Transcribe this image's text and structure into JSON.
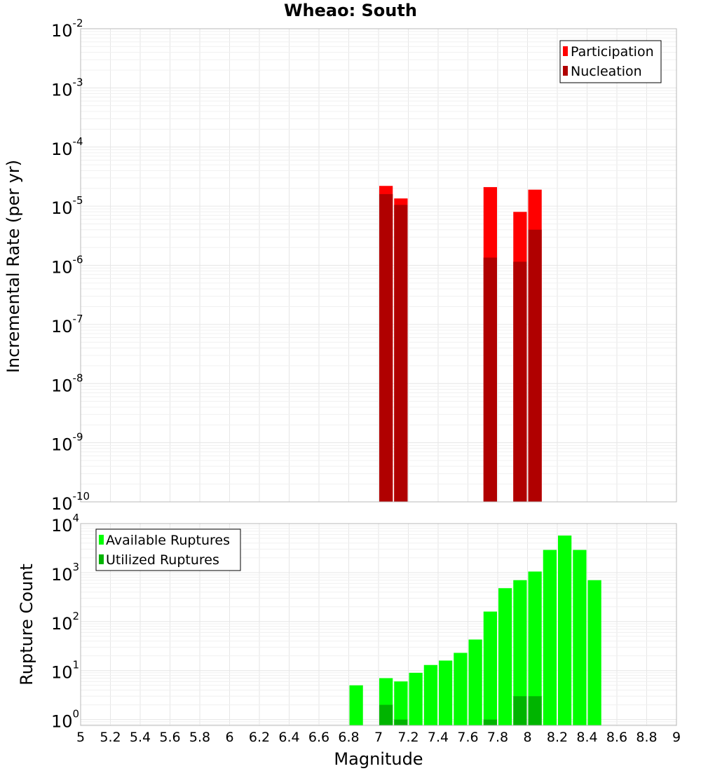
{
  "title": "Wheao: South",
  "xlabel": "Magnitude",
  "colors": {
    "participation": "#ff0000",
    "nucleation": "#b00000",
    "available": "#00ff00",
    "utilized": "#00b400"
  },
  "chart_data": [
    {
      "type": "bar",
      "name": "rates",
      "ylabel": "Incremental Rate (per yr)",
      "yscale": "log",
      "ylim_exp": [
        -10,
        -2
      ],
      "xlim": [
        5,
        9
      ],
      "y_ticks": [
        {
          "base": "10",
          "exp": "-10"
        },
        {
          "base": "10",
          "exp": "-9"
        },
        {
          "base": "10",
          "exp": "-8"
        },
        {
          "base": "10",
          "exp": "-7"
        },
        {
          "base": "10",
          "exp": "-6"
        },
        {
          "base": "10",
          "exp": "-5"
        },
        {
          "base": "10",
          "exp": "-4"
        },
        {
          "base": "10",
          "exp": "-3"
        },
        {
          "base": "10",
          "exp": "-2"
        }
      ],
      "legend": {
        "position": "top-right",
        "entries": [
          "Participation",
          "Nucleation"
        ]
      },
      "series": [
        {
          "name": "Participation",
          "x": [
            7.05,
            7.15,
            7.75,
            7.95,
            8.05
          ],
          "values": [
            2.2e-05,
            1.35e-05,
            2.1e-05,
            8e-06,
            1.9e-05
          ]
        },
        {
          "name": "Nucleation",
          "x": [
            7.05,
            7.15,
            7.75,
            7.95,
            8.05
          ],
          "values": [
            1.6e-05,
            1.05e-05,
            1.35e-06,
            1.15e-06,
            4e-06
          ]
        }
      ]
    },
    {
      "type": "bar",
      "name": "counts",
      "ylabel": "Rupture Count",
      "yscale": "log",
      "ylim_exp": [
        -0.12,
        4
      ],
      "xlim": [
        5,
        9
      ],
      "x_ticks": [
        "5",
        "5.2",
        "5.4",
        "5.6",
        "5.8",
        "6",
        "6.2",
        "6.4",
        "6.6",
        "6.8",
        "7",
        "7.2",
        "7.4",
        "7.6",
        "7.8",
        "8",
        "8.2",
        "8.4",
        "8.6",
        "8.8",
        "9"
      ],
      "y_ticks": [
        {
          "base": "10",
          "exp": "0"
        },
        {
          "base": "10",
          "exp": "1"
        },
        {
          "base": "10",
          "exp": "2"
        },
        {
          "base": "10",
          "exp": "3"
        },
        {
          "base": "10",
          "exp": "4"
        }
      ],
      "legend": {
        "position": "top-left",
        "entries": [
          "Available Ruptures",
          "Utilized Ruptures"
        ]
      },
      "series": [
        {
          "name": "Available Ruptures",
          "x": [
            6.85,
            7.05,
            7.15,
            7.25,
            7.35,
            7.45,
            7.55,
            7.65,
            7.75,
            7.85,
            7.95,
            8.05,
            8.15,
            8.25,
            8.35,
            8.45
          ],
          "values": [
            5,
            7,
            6,
            9,
            13,
            16,
            23,
            43,
            160,
            480,
            700,
            1050,
            2900,
            5700,
            2900,
            700
          ]
        },
        {
          "name": "Utilized Ruptures",
          "x": [
            7.05,
            7.15,
            7.75,
            7.95,
            8.05
          ],
          "values": [
            2,
            1,
            1,
            3,
            3
          ]
        }
      ]
    }
  ]
}
